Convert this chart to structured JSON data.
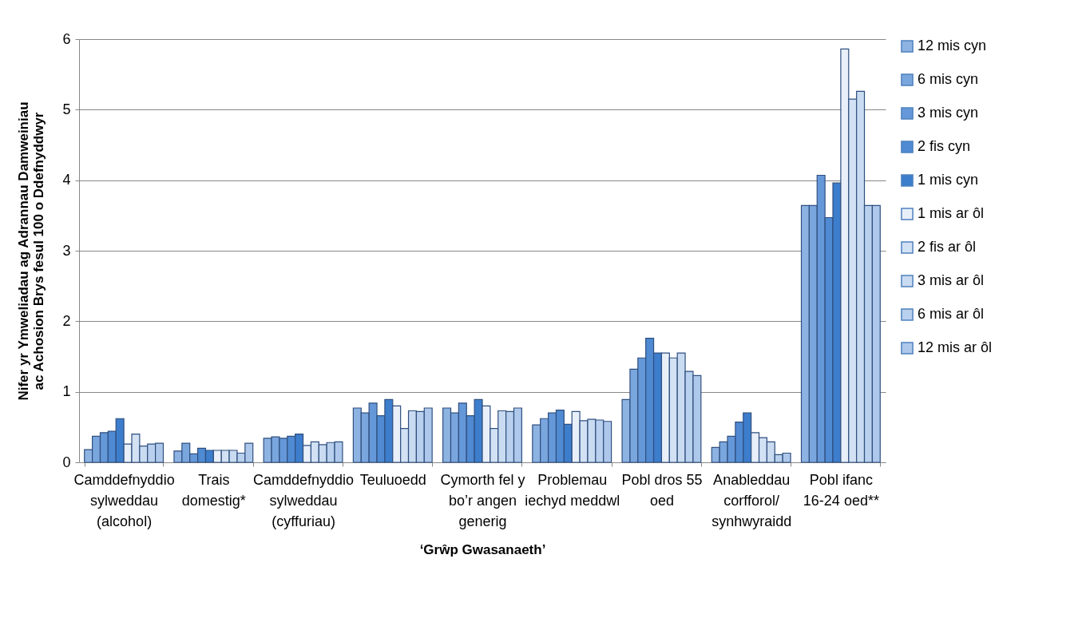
{
  "chart_data": {
    "type": "bar",
    "xlabel": "‘Grŵp Gwasanaeth’",
    "ylabel": "Nifer yr Ymweliadau ag Adrannau Damweiniau ac Achosion Brys fesul 100 o Ddefnyddwyr",
    "categories": [
      "Camddefnyddio sylweddau (alcohol)",
      "Trais domestig*",
      "Camddefnyddio sylweddau (cyffuriau)",
      "Teuluoedd",
      "Cymorth fel y bo’r angen generig",
      "Problemau iechyd meddwl",
      "Pobl dros 55 oed",
      "Anableddau corfforol/ synhwyraidd",
      "Pobl ifanc 16-24 oed**"
    ],
    "series": [
      {
        "name": "12 mis cyn",
        "color": "#8db3e2",
        "values": [
          0.18,
          0.16,
          0.34,
          0.77,
          0.77,
          0.53,
          0.89,
          0.21,
          3.64
        ]
      },
      {
        "name": "6 mis cyn",
        "color": "#7aa6de",
        "values": [
          0.37,
          0.27,
          0.36,
          0.7,
          0.7,
          0.62,
          1.32,
          0.29,
          3.64
        ]
      },
      {
        "name": "3 mis cyn",
        "color": "#6598d8",
        "values": [
          0.42,
          0.12,
          0.34,
          0.84,
          0.84,
          0.7,
          1.48,
          0.37,
          4.07
        ]
      },
      {
        "name": "2 fis cyn",
        "color": "#4f8ad2",
        "values": [
          0.44,
          0.2,
          0.37,
          0.66,
          0.66,
          0.74,
          1.76,
          0.57,
          3.47
        ]
      },
      {
        "name": "1 mis cyn",
        "color": "#3c7dcc",
        "values": [
          0.62,
          0.17,
          0.4,
          0.89,
          0.89,
          0.54,
          1.55,
          0.7,
          3.96
        ]
      },
      {
        "name": "1 mis ar ôl",
        "color": "#e8eff9",
        "values": [
          0.26,
          0.17,
          0.24,
          0.8,
          0.8,
          0.72,
          1.55,
          0.42,
          5.86
        ]
      },
      {
        "name": "2 fis ar ôl",
        "color": "#d2e1f4",
        "values": [
          0.4,
          0.17,
          0.29,
          0.48,
          0.48,
          0.59,
          1.48,
          0.35,
          5.15
        ]
      },
      {
        "name": "3 mis ar ôl",
        "color": "#c9dbf1",
        "values": [
          0.23,
          0.17,
          0.25,
          0.73,
          0.73,
          0.61,
          1.55,
          0.29,
          5.26
        ]
      },
      {
        "name": "6 mis ar ôl",
        "color": "#b9d0ee",
        "values": [
          0.26,
          0.13,
          0.28,
          0.72,
          0.72,
          0.6,
          1.29,
          0.11,
          3.64
        ]
      },
      {
        "name": "12 mis ar ôl",
        "color": "#aec8eb",
        "values": [
          0.27,
          0.27,
          0.29,
          0.77,
          0.77,
          0.58,
          1.23,
          0.13,
          3.64
        ]
      }
    ],
    "ylim": [
      0,
      6
    ],
    "yticks": [
      0,
      1,
      2,
      3,
      4,
      5,
      6
    ],
    "grid": "y",
    "legend": "right"
  }
}
